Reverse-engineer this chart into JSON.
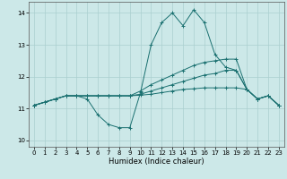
{
  "xlabel": "Humidex (Indice chaleur)",
  "xlim": [
    -0.5,
    23.5
  ],
  "ylim": [
    9.8,
    14.35
  ],
  "yticks": [
    10,
    11,
    12,
    13,
    14
  ],
  "xticks": [
    0,
    1,
    2,
    3,
    4,
    5,
    6,
    7,
    8,
    9,
    10,
    11,
    12,
    13,
    14,
    15,
    16,
    17,
    18,
    19,
    20,
    21,
    22,
    23
  ],
  "bg_color": "#cce8e8",
  "line_color": "#1a7070",
  "grid_color": "#aacfcf",
  "lines": [
    {
      "x": [
        0,
        1,
        2,
        3,
        4,
        5,
        6,
        7,
        8,
        9,
        10,
        11,
        12,
        13,
        14,
        15,
        16,
        17,
        18,
        19,
        20,
        21,
        22,
        23
      ],
      "y": [
        11.1,
        11.2,
        11.3,
        11.4,
        11.4,
        11.3,
        10.8,
        10.5,
        10.4,
        10.4,
        11.5,
        13.0,
        13.7,
        14.0,
        13.6,
        14.1,
        13.7,
        12.7,
        12.3,
        12.2,
        11.6,
        11.3,
        11.4,
        11.1
      ]
    },
    {
      "x": [
        0,
        1,
        2,
        3,
        4,
        5,
        6,
        7,
        8,
        9,
        10,
        11,
        12,
        13,
        14,
        15,
        16,
        17,
        18,
        19,
        20,
        21,
        22,
        23
      ],
      "y": [
        11.1,
        11.2,
        11.3,
        11.4,
        11.4,
        11.4,
        11.4,
        11.4,
        11.4,
        11.4,
        11.55,
        11.75,
        11.9,
        12.05,
        12.2,
        12.35,
        12.45,
        12.5,
        12.55,
        12.55,
        11.6,
        11.3,
        11.4,
        11.1
      ]
    },
    {
      "x": [
        0,
        1,
        2,
        3,
        4,
        5,
        6,
        7,
        8,
        9,
        10,
        11,
        12,
        13,
        14,
        15,
        16,
        17,
        18,
        19,
        20,
        21,
        22,
        23
      ],
      "y": [
        11.1,
        11.2,
        11.3,
        11.4,
        11.4,
        11.4,
        11.4,
        11.4,
        11.4,
        11.4,
        11.45,
        11.55,
        11.65,
        11.75,
        11.85,
        11.95,
        12.05,
        12.1,
        12.2,
        12.2,
        11.6,
        11.3,
        11.4,
        11.1
      ]
    },
    {
      "x": [
        0,
        1,
        2,
        3,
        4,
        5,
        6,
        7,
        8,
        9,
        10,
        11,
        12,
        13,
        14,
        15,
        16,
        17,
        18,
        19,
        20,
        21,
        22,
        23
      ],
      "y": [
        11.1,
        11.2,
        11.3,
        11.4,
        11.4,
        11.4,
        11.4,
        11.4,
        11.4,
        11.4,
        11.42,
        11.45,
        11.5,
        11.55,
        11.6,
        11.62,
        11.65,
        11.65,
        11.65,
        11.65,
        11.6,
        11.3,
        11.4,
        11.1
      ]
    }
  ]
}
